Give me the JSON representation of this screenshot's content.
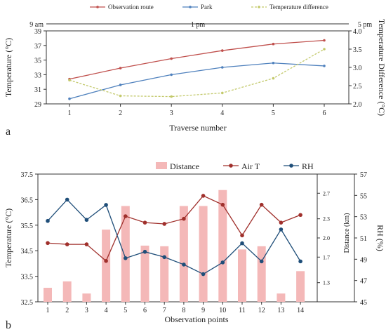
{
  "chart_data": [
    {
      "panel_label": "a",
      "type": "line",
      "x": [
        1,
        2,
        3,
        4,
        5,
        6
      ],
      "xlabel": "Traverse number",
      "ylabel": "Temperature (°C)",
      "ylim": [
        29,
        39
      ],
      "yticks": [
        29,
        31,
        33,
        35,
        37,
        39
      ],
      "y2label": "Temperature Difference (°C)",
      "y2lim": [
        2.0,
        4.0
      ],
      "y2ticks": [
        "2.0",
        "2.5",
        "3.0",
        "3.5",
        "4.0"
      ],
      "time_labels": [
        "9 am",
        "1 pm",
        "5 pm"
      ],
      "legend_position": "top",
      "series": [
        {
          "name": "Observation route",
          "axis": "left",
          "color": "#c0504d",
          "values": [
            32.4,
            33.9,
            35.2,
            36.3,
            37.2,
            37.7
          ]
        },
        {
          "name": "Park",
          "axis": "left",
          "color": "#4f81bd",
          "values": [
            29.7,
            31.6,
            33.0,
            34.0,
            34.6,
            34.2
          ]
        },
        {
          "name": "Temperature difference",
          "axis": "right",
          "color": "#c3c96b",
          "dashed": true,
          "values": [
            2.65,
            2.22,
            2.2,
            2.3,
            2.7,
            3.5
          ]
        }
      ]
    },
    {
      "panel_label": "b",
      "type": "bar+line",
      "x": [
        1,
        2,
        3,
        4,
        5,
        6,
        7,
        8,
        9,
        10,
        11,
        12,
        13,
        14
      ],
      "xlabel": "Observation points",
      "ylabel": "Temperature (°C)",
      "ylim": [
        32.5,
        37.5
      ],
      "yticks": [
        "32.5",
        "33.5",
        "34.5",
        "35.5",
        "36.5",
        "37.5"
      ],
      "y2label": "Distance (km)",
      "y2lim": [
        1.0,
        3.0
      ],
      "y2ticks": [
        "1.3",
        "1.7",
        "2.0",
        "2.3",
        "2.7"
      ],
      "y3label": "RH (%)",
      "y3lim": [
        45,
        57
      ],
      "y3ticks": [
        "45",
        "47",
        "49",
        "51",
        "53",
        "55",
        "57"
      ],
      "legend_position": "top",
      "series": [
        {
          "name": "Distance",
          "type": "bar",
          "axis": "distance",
          "color": "#f4b8b8",
          "values": [
            1.22,
            1.32,
            1.13,
            2.13,
            2.5,
            1.88,
            1.87,
            2.5,
            2.5,
            2.75,
            1.82,
            1.87,
            1.13,
            1.48
          ]
        },
        {
          "name": "Air T",
          "type": "line",
          "axis": "left",
          "color": "#a0302c",
          "values": [
            34.8,
            34.75,
            34.75,
            34.1,
            35.85,
            35.6,
            35.55,
            35.75,
            36.65,
            36.3,
            35.1,
            36.3,
            35.6,
            35.9
          ]
        },
        {
          "name": "RH",
          "type": "line",
          "axis": "rh",
          "color": "#1f4e79",
          "values": [
            52.6,
            54.6,
            52.7,
            54.1,
            49.1,
            49.7,
            49.2,
            48.5,
            47.6,
            48.7,
            50.5,
            48.8,
            51.8,
            48.8
          ]
        }
      ]
    }
  ]
}
